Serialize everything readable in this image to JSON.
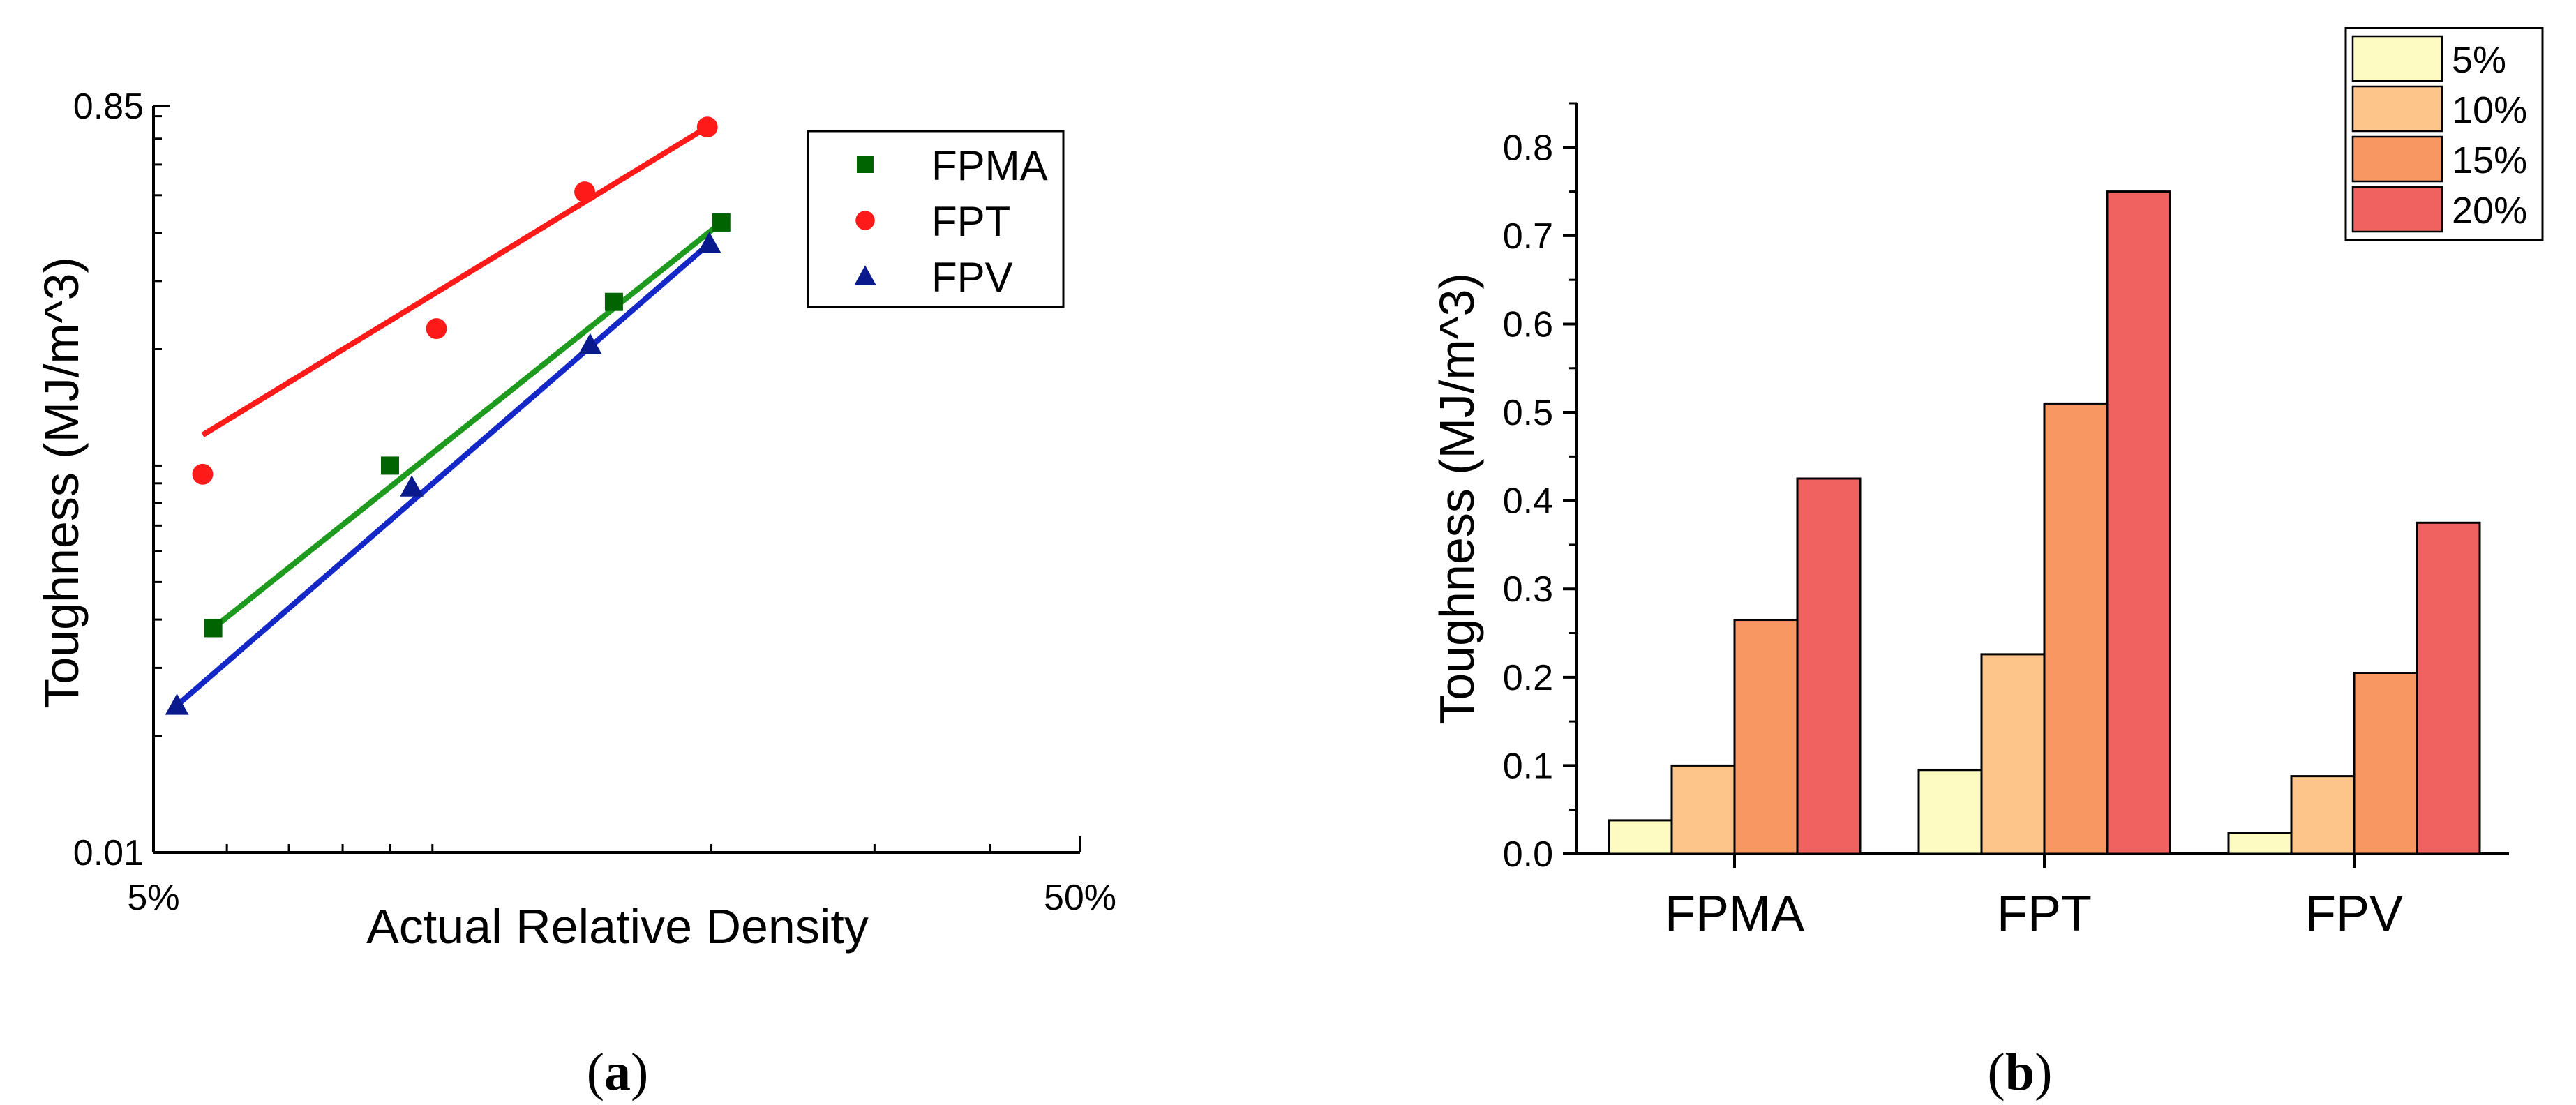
{
  "chart_data": [
    {
      "panel": "a",
      "type": "scatter",
      "xscale": "log",
      "yscale": "log",
      "xlabel": "Actual Relative Density",
      "ylabel": "Toughness (MJ/m^3)",
      "xticks": [
        "5%",
        "50%"
      ],
      "yticks": [
        "0.01",
        "0.85"
      ],
      "xlim": [
        5,
        50
      ],
      "ylim": [
        0.01,
        0.85
      ],
      "legend_position": "top-right",
      "series": [
        {
          "name": "FPMA",
          "color": "#006400",
          "line_color": "#1e9a1e",
          "marker": "square",
          "x": [
            5.8,
            9.0,
            15.7,
            20.5
          ],
          "y": [
            0.038,
            0.1,
            0.265,
            0.425
          ],
          "fit": [
            [
              5.8,
              0.038
            ],
            [
              20.5,
              0.425
            ]
          ]
        },
        {
          "name": "FPT",
          "color": "#ff1a1a",
          "line_color": "#ff1a1a",
          "marker": "circle",
          "x": [
            5.65,
            10.1,
            14.6,
            19.8
          ],
          "y": [
            0.095,
            0.226,
            0.51,
            0.75
          ],
          "fit": [
            [
              5.65,
              0.12
            ],
            [
              19.8,
              0.75
            ]
          ]
        },
        {
          "name": "FPV",
          "color": "#0a1a8c",
          "line_color": "#1428c8",
          "marker": "triangle",
          "x": [
            5.3,
            9.5,
            14.8,
            19.9
          ],
          "y": [
            0.024,
            0.088,
            0.205,
            0.375
          ],
          "fit": [
            [
              5.3,
              0.024
            ],
            [
              19.9,
              0.375
            ]
          ]
        }
      ],
      "panel_label": "a"
    },
    {
      "panel": "b",
      "type": "bar",
      "categories": [
        "FPMA",
        "FPT",
        "FPV"
      ],
      "ylabel": "Toughness (MJ/m^3)",
      "xlabel": "",
      "ylim": [
        0,
        0.85
      ],
      "yticks": [
        "0.0",
        "0.1",
        "0.2",
        "0.3",
        "0.4",
        "0.5",
        "0.6",
        "0.7",
        "0.8"
      ],
      "legend_position": "top-right",
      "series": [
        {
          "name": "5%",
          "color": "#fdfbc2",
          "values": [
            0.038,
            0.095,
            0.024
          ]
        },
        {
          "name": "10%",
          "color": "#fdc58a",
          "values": [
            0.1,
            0.226,
            0.088
          ]
        },
        {
          "name": "15%",
          "color": "#f99762",
          "values": [
            0.265,
            0.51,
            0.205
          ]
        },
        {
          "name": "20%",
          "color": "#ef6260",
          "values": [
            0.425,
            0.75,
            0.375
          ]
        }
      ],
      "panel_label": "b"
    }
  ]
}
